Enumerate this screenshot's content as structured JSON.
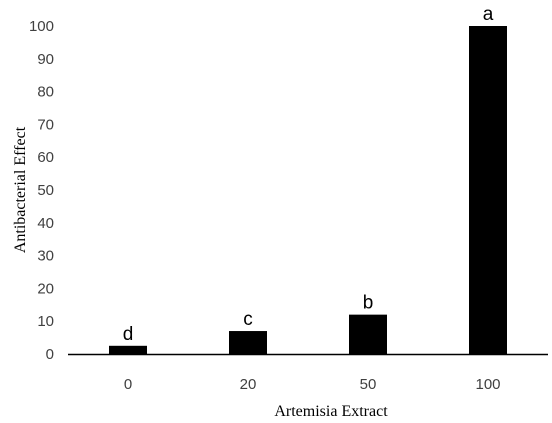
{
  "chart_data": {
    "type": "bar",
    "categories": [
      "0",
      "20",
      "50",
      "100"
    ],
    "values": [
      2.5,
      7,
      12,
      100
    ],
    "data_labels": [
      "d",
      "c",
      "b",
      "a"
    ],
    "title": "",
    "xlabel": "Artemisia Extract",
    "ylabel": "Antibacterial Effect",
    "ylim": [
      0,
      100
    ],
    "yticks": [
      0,
      10,
      20,
      30,
      40,
      50,
      60,
      70,
      80,
      90,
      100
    ],
    "grid": false,
    "legend": "none",
    "bar_color": "#000000",
    "axis_color": "#000000"
  }
}
